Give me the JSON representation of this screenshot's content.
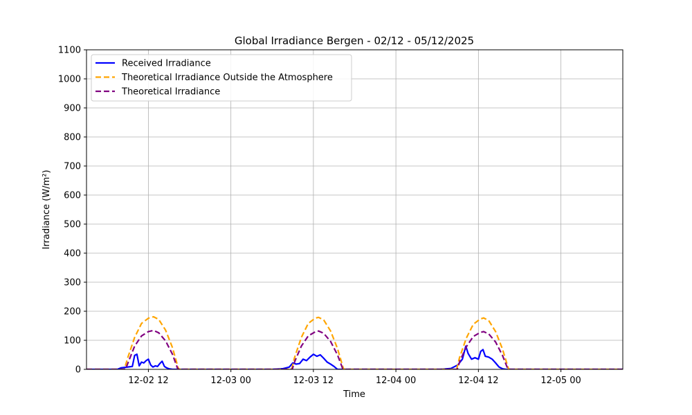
{
  "chart_data": {
    "type": "line",
    "title": "Global Irradiance Bergen - 02/12 - 05/12/2025",
    "xlabel": "Time",
    "ylabel": "Irradiance (W/m²)",
    "xlim": [
      "2025-12-02 03:00",
      "2025-12-05 09:00"
    ],
    "ylim": [
      0,
      1100
    ],
    "x_ticks": [
      {
        "value": "2025-12-02 12:00",
        "label": "12-02 12"
      },
      {
        "value": "2025-12-03 00:00",
        "label": "12-03 00"
      },
      {
        "value": "2025-12-03 12:00",
        "label": "12-03 12"
      },
      {
        "value": "2025-12-04 00:00",
        "label": "12-04 00"
      },
      {
        "value": "2025-12-04 12:00",
        "label": "12-04 12"
      },
      {
        "value": "2025-12-05 00:00",
        "label": "12-05 00"
      }
    ],
    "y_ticks": [
      0,
      100,
      200,
      300,
      400,
      500,
      600,
      700,
      800,
      900,
      1000,
      1100
    ],
    "grid": true,
    "legend": "top-left",
    "series": [
      {
        "name": "Received Irradiance",
        "color": "#0000ff",
        "style": "solid",
        "points": [
          [
            "2025-12-02 03:00",
            0
          ],
          [
            "2025-12-02 06:30",
            0
          ],
          [
            "2025-12-02 07:30",
            0
          ],
          [
            "2025-12-02 08:00",
            5
          ],
          [
            "2025-12-02 09:00",
            8
          ],
          [
            "2025-12-02 09:40",
            10
          ],
          [
            "2025-12-02 10:00",
            48
          ],
          [
            "2025-12-02 10:20",
            52
          ],
          [
            "2025-12-02 10:40",
            12
          ],
          [
            "2025-12-02 11:00",
            25
          ],
          [
            "2025-12-02 11:20",
            22
          ],
          [
            "2025-12-02 11:40",
            30
          ],
          [
            "2025-12-02 12:00",
            35
          ],
          [
            "2025-12-02 12:20",
            15
          ],
          [
            "2025-12-02 12:40",
            8
          ],
          [
            "2025-12-02 13:00",
            12
          ],
          [
            "2025-12-02 13:20",
            10
          ],
          [
            "2025-12-02 13:40",
            20
          ],
          [
            "2025-12-02 14:00",
            28
          ],
          [
            "2025-12-02 14:20",
            10
          ],
          [
            "2025-12-02 14:40",
            5
          ],
          [
            "2025-12-02 15:00",
            2
          ],
          [
            "2025-12-02 15:30",
            0
          ],
          [
            "2025-12-03 06:00",
            0
          ],
          [
            "2025-12-03 07:30",
            2
          ],
          [
            "2025-12-03 08:30",
            8
          ],
          [
            "2025-12-03 09:00",
            22
          ],
          [
            "2025-12-03 09:30",
            18
          ],
          [
            "2025-12-03 10:00",
            20
          ],
          [
            "2025-12-03 10:30",
            35
          ],
          [
            "2025-12-03 11:00",
            30
          ],
          [
            "2025-12-03 11:30",
            42
          ],
          [
            "2025-12-03 12:00",
            52
          ],
          [
            "2025-12-03 12:30",
            45
          ],
          [
            "2025-12-03 13:00",
            50
          ],
          [
            "2025-12-03 13:30",
            38
          ],
          [
            "2025-12-03 14:00",
            25
          ],
          [
            "2025-12-03 14:30",
            18
          ],
          [
            "2025-12-03 15:00",
            10
          ],
          [
            "2025-12-03 15:30",
            0
          ],
          [
            "2025-12-04 06:30",
            0
          ],
          [
            "2025-12-04 08:00",
            3
          ],
          [
            "2025-12-04 09:00",
            15
          ],
          [
            "2025-12-04 09:40",
            35
          ],
          [
            "2025-12-04 10:10",
            80
          ],
          [
            "2025-12-04 10:30",
            55
          ],
          [
            "2025-12-04 11:00",
            35
          ],
          [
            "2025-12-04 11:30",
            40
          ],
          [
            "2025-12-04 12:00",
            35
          ],
          [
            "2025-12-04 12:20",
            62
          ],
          [
            "2025-12-04 12:40",
            68
          ],
          [
            "2025-12-04 13:00",
            45
          ],
          [
            "2025-12-04 13:30",
            42
          ],
          [
            "2025-12-04 14:00",
            35
          ],
          [
            "2025-12-04 14:30",
            22
          ],
          [
            "2025-12-04 15:00",
            8
          ],
          [
            "2025-12-04 15:30",
            2
          ],
          [
            "2025-12-04 16:00",
            0
          ],
          [
            "2025-12-05 09:00",
            0
          ]
        ]
      },
      {
        "name": "Theoretical Irradiance Outside the Atmosphere",
        "color": "#ffa500",
        "style": "dashed",
        "points": [
          [
            "2025-12-02 03:00",
            0
          ],
          [
            "2025-12-02 08:30",
            0
          ],
          [
            "2025-12-02 09:00",
            40
          ],
          [
            "2025-12-02 10:00",
            110
          ],
          [
            "2025-12-02 11:00",
            158
          ],
          [
            "2025-12-02 12:00",
            176
          ],
          [
            "2025-12-02 12:45",
            181
          ],
          [
            "2025-12-02 13:30",
            172
          ],
          [
            "2025-12-02 14:30",
            135
          ],
          [
            "2025-12-02 15:30",
            75
          ],
          [
            "2025-12-02 16:20",
            5
          ],
          [
            "2025-12-02 16:30",
            0
          ],
          [
            "2025-12-03 08:50",
            0
          ],
          [
            "2025-12-03 09:15",
            40
          ],
          [
            "2025-12-03 10:15",
            110
          ],
          [
            "2025-12-03 11:15",
            158
          ],
          [
            "2025-12-03 12:15",
            176
          ],
          [
            "2025-12-03 12:45",
            179
          ],
          [
            "2025-12-03 13:30",
            170
          ],
          [
            "2025-12-03 14:30",
            132
          ],
          [
            "2025-12-03 15:30",
            72
          ],
          [
            "2025-12-03 16:20",
            5
          ],
          [
            "2025-12-03 16:30",
            0
          ],
          [
            "2025-12-04 08:50",
            0
          ],
          [
            "2025-12-04 09:15",
            40
          ],
          [
            "2025-12-04 10:15",
            108
          ],
          [
            "2025-12-04 11:15",
            155
          ],
          [
            "2025-12-04 12:15",
            173
          ],
          [
            "2025-12-04 12:45",
            177
          ],
          [
            "2025-12-04 13:30",
            168
          ],
          [
            "2025-12-04 14:30",
            130
          ],
          [
            "2025-12-04 15:30",
            70
          ],
          [
            "2025-12-04 16:20",
            5
          ],
          [
            "2025-12-04 16:30",
            0
          ],
          [
            "2025-12-05 09:00",
            0
          ]
        ]
      },
      {
        "name": "Theoretical Irradiance",
        "color": "#800080",
        "style": "dashed",
        "points": [
          [
            "2025-12-02 03:00",
            0
          ],
          [
            "2025-12-02 08:40",
            0
          ],
          [
            "2025-12-02 09:10",
            30
          ],
          [
            "2025-12-02 10:00",
            80
          ],
          [
            "2025-12-02 11:00",
            115
          ],
          [
            "2025-12-02 12:00",
            130
          ],
          [
            "2025-12-02 12:45",
            134
          ],
          [
            "2025-12-02 13:30",
            126
          ],
          [
            "2025-12-02 14:30",
            98
          ],
          [
            "2025-12-02 15:30",
            52
          ],
          [
            "2025-12-02 16:15",
            3
          ],
          [
            "2025-12-02 16:25",
            0
          ],
          [
            "2025-12-03 08:55",
            0
          ],
          [
            "2025-12-03 09:20",
            30
          ],
          [
            "2025-12-03 10:15",
            80
          ],
          [
            "2025-12-03 11:15",
            115
          ],
          [
            "2025-12-03 12:15",
            129
          ],
          [
            "2025-12-03 12:45",
            132
          ],
          [
            "2025-12-03 13:30",
            124
          ],
          [
            "2025-12-03 14:30",
            96
          ],
          [
            "2025-12-03 15:30",
            50
          ],
          [
            "2025-12-03 16:15",
            3
          ],
          [
            "2025-12-03 16:25",
            0
          ],
          [
            "2025-12-04 08:55",
            0
          ],
          [
            "2025-12-04 09:20",
            30
          ],
          [
            "2025-12-04 10:15",
            78
          ],
          [
            "2025-12-04 11:15",
            113
          ],
          [
            "2025-12-04 12:15",
            127
          ],
          [
            "2025-12-04 12:45",
            130
          ],
          [
            "2025-12-04 13:30",
            122
          ],
          [
            "2025-12-04 14:30",
            94
          ],
          [
            "2025-12-04 15:30",
            48
          ],
          [
            "2025-12-04 16:15",
            3
          ],
          [
            "2025-12-04 16:25",
            0
          ],
          [
            "2025-12-05 09:00",
            0
          ]
        ]
      }
    ]
  }
}
